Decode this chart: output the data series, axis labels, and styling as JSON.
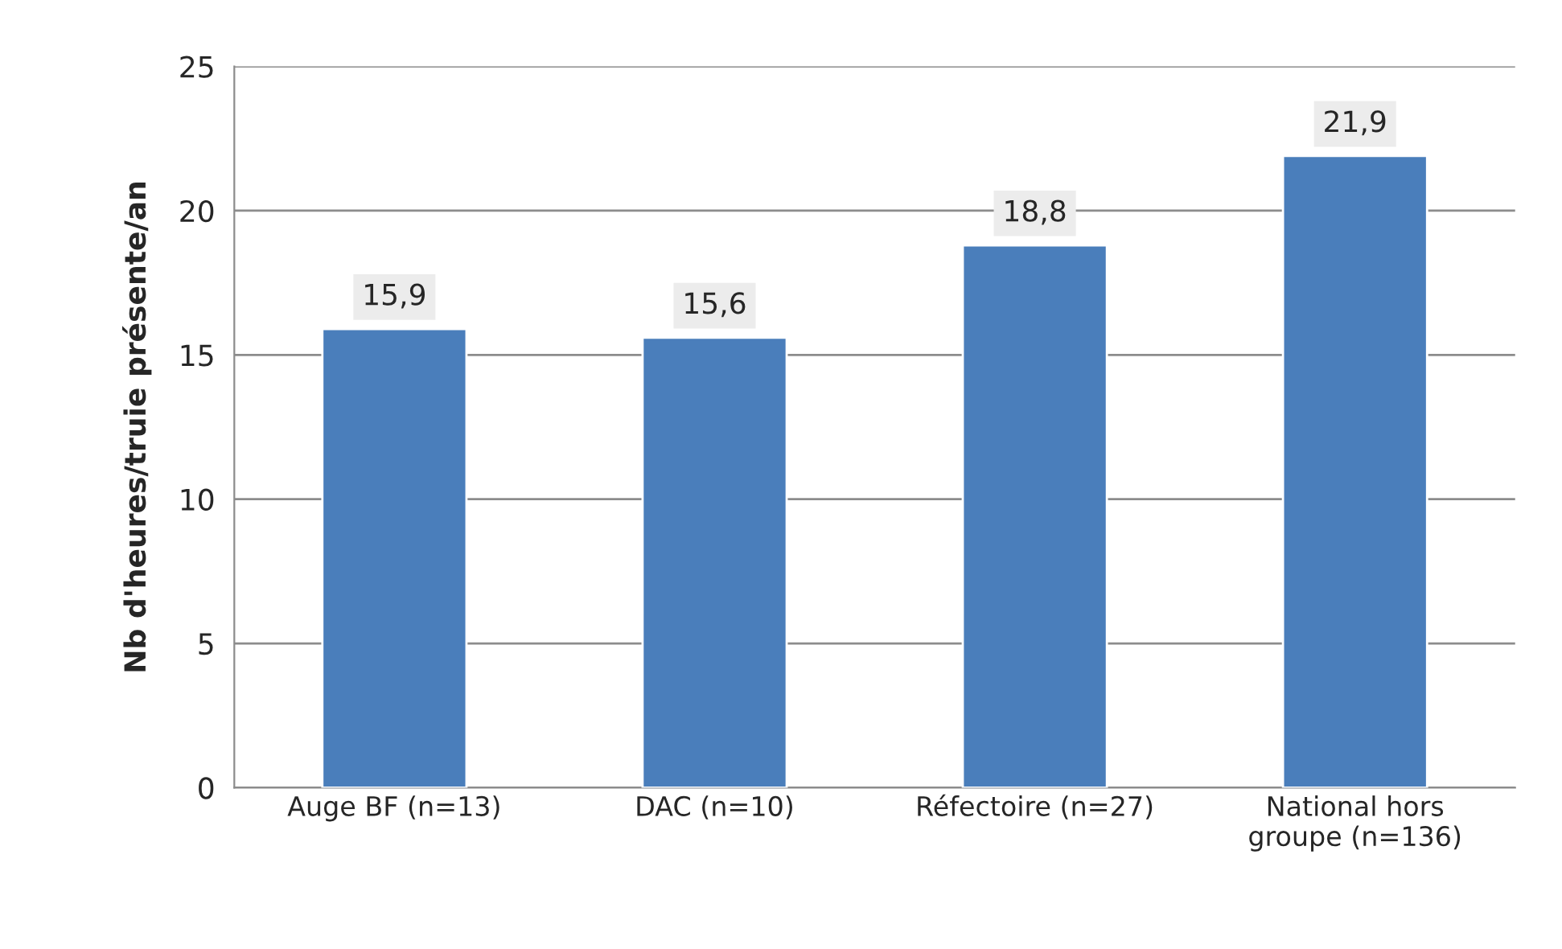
{
  "chart_data": {
    "type": "bar",
    "ylabel": "Nb d'heures/truie présente/an",
    "categories": [
      "Auge BF (n=13)",
      "DAC (n=10)",
      "Réfectoire (n=27)",
      "National hors\ngroupe (n=136)"
    ],
    "values": [
      15.9,
      15.6,
      18.8,
      21.9
    ],
    "value_labels": [
      "15,9",
      "15,6",
      "18,8",
      "21,9"
    ],
    "color": "#4a7ebb",
    "ylim": [
      0,
      25
    ],
    "yticks": [
      0,
      5,
      10,
      15,
      20,
      25
    ],
    "grid": "y"
  }
}
